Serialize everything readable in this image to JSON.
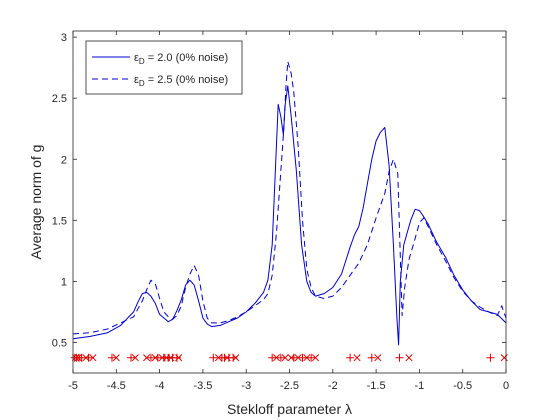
{
  "chart_data": {
    "type": "line",
    "xlabel": "Stekloff parameter λ",
    "ylabel": "Average norm of g",
    "xlim": [
      -5,
      0
    ],
    "ylim": [
      0.25,
      3.05
    ],
    "xticks": [
      -5,
      -4.5,
      -4,
      -3.5,
      -3,
      -2.5,
      -2,
      -1.5,
      -1,
      -0.5,
      0
    ],
    "xtick_labels": [
      "-5",
      "-4.5",
      "-4",
      "-3.5",
      "-3",
      "-2.5",
      "-2",
      "-1.5",
      "-1",
      "-0.5",
      "0"
    ],
    "yticks": [
      0.5,
      1,
      1.5,
      2,
      2.5,
      3
    ],
    "ytick_labels": [
      "0.5",
      "1",
      "1.5",
      "2",
      "2.5",
      "3"
    ],
    "grid": false,
    "legend": {
      "placement": "top-left",
      "entries": [
        {
          "prefix": "ε",
          "sub": "D",
          "text": " = 2.0 (0% noise)"
        },
        {
          "prefix": "ε",
          "sub": "D",
          "text": " = 2.5 (0% noise)"
        }
      ]
    },
    "series": [
      {
        "name": "εD = 2.0 (0% noise)",
        "style": "solid",
        "color": "#0000cc",
        "points": [
          [
            -5,
            0.53
          ],
          [
            -4.8,
            0.55
          ],
          [
            -4.6,
            0.58
          ],
          [
            -4.45,
            0.64
          ],
          [
            -4.3,
            0.75
          ],
          [
            -4.25,
            0.83
          ],
          [
            -4.2,
            0.9
          ],
          [
            -4.15,
            0.91
          ],
          [
            -4.1,
            0.88
          ],
          [
            -4.05,
            0.82
          ],
          [
            -4.0,
            0.73
          ],
          [
            -3.95,
            0.7
          ],
          [
            -3.9,
            0.67
          ],
          [
            -3.85,
            0.69
          ],
          [
            -3.8,
            0.76
          ],
          [
            -3.75,
            0.85
          ],
          [
            -3.7,
            0.97
          ],
          [
            -3.65,
            1.01
          ],
          [
            -3.6,
            0.97
          ],
          [
            -3.55,
            0.84
          ],
          [
            -3.5,
            0.7
          ],
          [
            -3.45,
            0.65
          ],
          [
            -3.4,
            0.63
          ],
          [
            -3.3,
            0.64
          ],
          [
            -3.2,
            0.67
          ],
          [
            -3.1,
            0.7
          ],
          [
            -3.0,
            0.75
          ],
          [
            -2.9,
            0.82
          ],
          [
            -2.8,
            0.91
          ],
          [
            -2.75,
            1.01
          ],
          [
            -2.7,
            1.3
          ],
          [
            -2.67,
            1.8
          ],
          [
            -2.63,
            2.45
          ],
          [
            -2.6,
            2.35
          ],
          [
            -2.57,
            2.2
          ],
          [
            -2.55,
            2.45
          ],
          [
            -2.52,
            2.6
          ],
          [
            -2.48,
            2.35
          ],
          [
            -2.42,
            1.9
          ],
          [
            -2.36,
            1.3
          ],
          [
            -2.3,
            1.0
          ],
          [
            -2.25,
            0.91
          ],
          [
            -2.2,
            0.88
          ],
          [
            -2.1,
            0.9
          ],
          [
            -2.0,
            0.95
          ],
          [
            -1.9,
            1.06
          ],
          [
            -1.8,
            1.28
          ],
          [
            -1.75,
            1.38
          ],
          [
            -1.7,
            1.45
          ],
          [
            -1.65,
            1.6
          ],
          [
            -1.6,
            1.8
          ],
          [
            -1.55,
            2.0
          ],
          [
            -1.5,
            2.15
          ],
          [
            -1.45,
            2.22
          ],
          [
            -1.4,
            2.26
          ],
          [
            -1.35,
            1.95
          ],
          [
            -1.3,
            1.3
          ],
          [
            -1.26,
            0.7
          ],
          [
            -1.24,
            0.48
          ],
          [
            -1.22,
            1.0
          ],
          [
            -1.18,
            1.3
          ],
          [
            -1.1,
            1.5
          ],
          [
            -1.05,
            1.59
          ],
          [
            -1.0,
            1.58
          ],
          [
            -0.95,
            1.53
          ],
          [
            -0.9,
            1.47
          ],
          [
            -0.8,
            1.32
          ],
          [
            -0.7,
            1.2
          ],
          [
            -0.6,
            1.05
          ],
          [
            -0.5,
            0.93
          ],
          [
            -0.4,
            0.84
          ],
          [
            -0.3,
            0.77
          ],
          [
            -0.2,
            0.75
          ],
          [
            -0.1,
            0.73
          ],
          [
            0,
            0.66
          ]
        ]
      },
      {
        "name": "εD = 2.5 (0% noise)",
        "style": "dashed",
        "color": "#0000cc",
        "points": [
          [
            -5,
            0.57
          ],
          [
            -4.8,
            0.58
          ],
          [
            -4.6,
            0.61
          ],
          [
            -4.45,
            0.66
          ],
          [
            -4.3,
            0.71
          ],
          [
            -4.2,
            0.84
          ],
          [
            -4.15,
            0.93
          ],
          [
            -4.1,
            1.01
          ],
          [
            -4.05,
            0.98
          ],
          [
            -4.0,
            0.86
          ],
          [
            -3.95,
            0.75
          ],
          [
            -3.9,
            0.71
          ],
          [
            -3.85,
            0.69
          ],
          [
            -3.8,
            0.72
          ],
          [
            -3.75,
            0.8
          ],
          [
            -3.7,
            0.95
          ],
          [
            -3.65,
            1.06
          ],
          [
            -3.6,
            1.13
          ],
          [
            -3.55,
            1.05
          ],
          [
            -3.5,
            0.84
          ],
          [
            -3.45,
            0.7
          ],
          [
            -3.4,
            0.66
          ],
          [
            -3.3,
            0.66
          ],
          [
            -3.2,
            0.68
          ],
          [
            -3.1,
            0.71
          ],
          [
            -3.0,
            0.75
          ],
          [
            -2.9,
            0.8
          ],
          [
            -2.8,
            0.85
          ],
          [
            -2.75,
            0.9
          ],
          [
            -2.7,
            1.05
          ],
          [
            -2.65,
            1.4
          ],
          [
            -2.6,
            1.9
          ],
          [
            -2.57,
            2.2
          ],
          [
            -2.54,
            2.6
          ],
          [
            -2.52,
            2.8
          ],
          [
            -2.48,
            2.7
          ],
          [
            -2.45,
            2.55
          ],
          [
            -2.4,
            2.1
          ],
          [
            -2.35,
            1.5
          ],
          [
            -2.3,
            1.1
          ],
          [
            -2.25,
            0.95
          ],
          [
            -2.2,
            0.88
          ],
          [
            -2.1,
            0.86
          ],
          [
            -2.0,
            0.88
          ],
          [
            -1.9,
            0.95
          ],
          [
            -1.8,
            1.05
          ],
          [
            -1.7,
            1.15
          ],
          [
            -1.6,
            1.3
          ],
          [
            -1.5,
            1.52
          ],
          [
            -1.45,
            1.62
          ],
          [
            -1.4,
            1.72
          ],
          [
            -1.35,
            1.9
          ],
          [
            -1.3,
            2.0
          ],
          [
            -1.25,
            1.88
          ],
          [
            -1.2,
            0.72
          ],
          [
            -1.17,
            0.95
          ],
          [
            -1.12,
            1.18
          ],
          [
            -1.05,
            1.35
          ],
          [
            -1.0,
            1.48
          ],
          [
            -0.95,
            1.52
          ],
          [
            -0.9,
            1.45
          ],
          [
            -0.8,
            1.3
          ],
          [
            -0.7,
            1.17
          ],
          [
            -0.6,
            1.03
          ],
          [
            -0.5,
            0.92
          ],
          [
            -0.4,
            0.84
          ],
          [
            -0.3,
            0.79
          ],
          [
            -0.2,
            0.75
          ],
          [
            -0.1,
            0.72
          ],
          [
            -0.05,
            0.8
          ],
          [
            0,
            0.7
          ]
        ]
      }
    ],
    "markers": {
      "y": 0.375,
      "color": "#dd0000",
      "plus": [
        -4.98,
        -4.96,
        -4.93,
        -4.9,
        -4.82,
        -4.55,
        -4.33,
        -4.1,
        -4.02,
        -3.95,
        -3.9,
        -3.85,
        -3.8,
        -3.38,
        -3.28,
        -3.25,
        -3.2,
        -3.15,
        -2.7,
        -2.6,
        -2.45,
        -2.35,
        -2.25,
        -1.8,
        -1.55,
        -1.23,
        -0.18
      ],
      "cross": [
        -4.97,
        -4.94,
        -4.85,
        -4.77,
        -4.5,
        -4.28,
        -4.15,
        -4.05,
        -3.97,
        -3.92,
        -3.87,
        -3.78,
        -3.32,
        -3.22,
        -3.12,
        -2.65,
        -2.55,
        -2.48,
        -2.4,
        -2.3,
        -2.2,
        -1.72,
        -1.48,
        -1.12,
        -0.02
      ]
    }
  }
}
